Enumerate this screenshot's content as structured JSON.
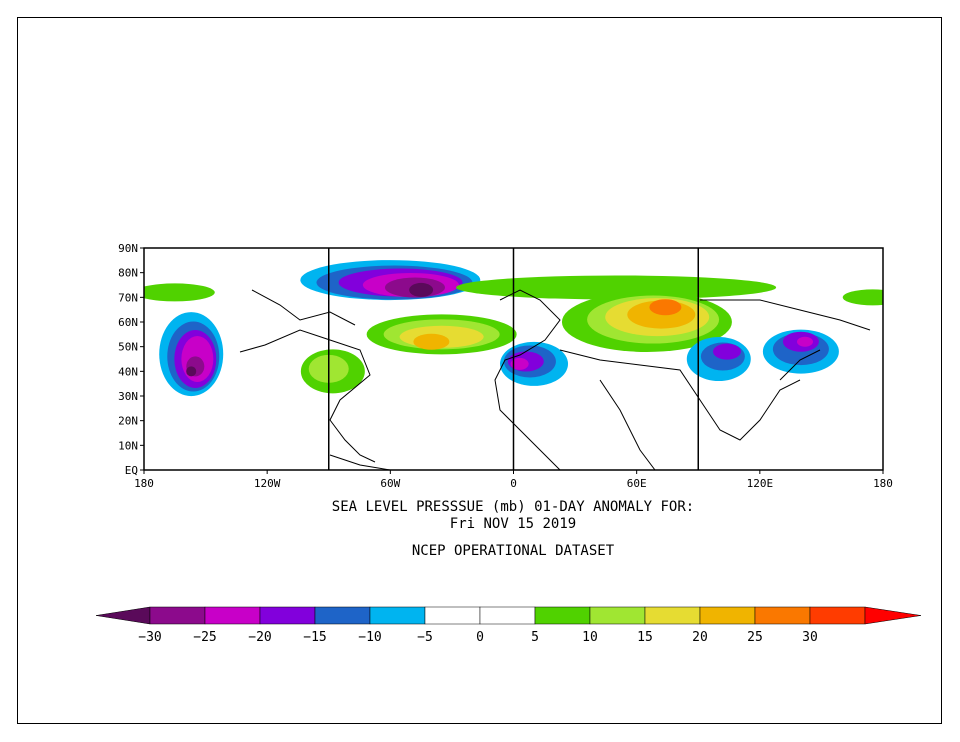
{
  "title": {
    "line1": "SEA LEVEL PRESSSUE (mb)   01-DAY ANOMALY FOR:",
    "line2": "Fri NOV 15 2019",
    "line3": "NCEP OPERATIONAL DATASET"
  },
  "axes": {
    "lat_labels": [
      "90N",
      "80N",
      "70N",
      "60N",
      "50N",
      "40N",
      "30N",
      "20N",
      "10N",
      "EQ"
    ],
    "lon_labels": [
      "180",
      "120W",
      "60W",
      "0",
      "60E",
      "120E",
      "180"
    ]
  },
  "colorbar": {
    "labels": [
      "-30",
      "-25",
      "-20",
      "-15",
      "-10",
      "-5",
      "0",
      "5",
      "10",
      "15",
      "20",
      "25",
      "30"
    ],
    "colors": [
      "#5a0a5a",
      "#8c0a8c",
      "#c800c8",
      "#8200dc",
      "#1e64c8",
      "#00b4f0",
      "#ffffff",
      "#ffffff",
      "#50d200",
      "#a0e632",
      "#e6dc32",
      "#f0b400",
      "#fa7800",
      "#ff3c00",
      "#ff0000"
    ]
  },
  "anomaly_palette": {
    "neg30": "#5a0a5a",
    "neg25": "#8c0a8c",
    "neg20": "#c800c8",
    "neg15": "#8200dc",
    "neg10": "#1e64c8",
    "neg5": "#00b4f0",
    "pos5": "#50d200",
    "pos10": "#a0e632",
    "pos15": "#e6dc32",
    "pos20": "#f0b400",
    "pos25": "#fa7800",
    "pos30": "#ff3c00"
  }
}
